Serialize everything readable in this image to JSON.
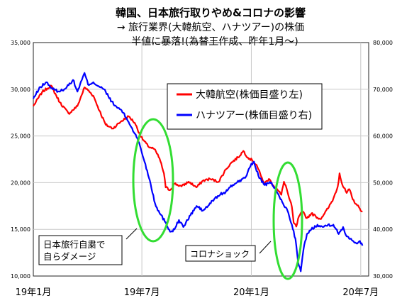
{
  "titles": {
    "line1": "韓国、日本旅行取りやめ&コロナの影響",
    "line2": "→  旅行業界(大韓航空、ハナツアー)の株価",
    "line3": "半値に暴落!(為替王作成、昨年1月〜)"
  },
  "annotations": {
    "japan_boycott_line1": "日本旅行自粛で",
    "japan_boycott_line2": "自らダメージ",
    "corona_shock": "コロナショック"
  },
  "colors": {
    "korean_air": "#ff0000",
    "hanatour": "#0000ff",
    "highlight": "#33dd33"
  },
  "chart_data": {
    "type": "line",
    "title": "韓国、日本旅行取りやめ&コロナの影響",
    "x_tick_labels": [
      "19年1月",
      "19年7月",
      "20年1月",
      "20年7月"
    ],
    "x_unit": "trading-day index (0 = 2019-01-02)",
    "x_range": [
      0,
      380
    ],
    "x_tick_positions": [
      0,
      123,
      247,
      371
    ],
    "y_left": {
      "range": [
        10000,
        35000
      ],
      "ticks": [
        "10,000",
        "15,000",
        "20,000",
        "25,000",
        "30,000",
        "35,000"
      ]
    },
    "y_right": {
      "range": [
        30000,
        80000
      ],
      "ticks": [
        "30,000",
        "40,000",
        "50,000",
        "60,000",
        "70,000",
        "80,000"
      ]
    },
    "grid": true,
    "legend_position": "top-right",
    "series": [
      {
        "name": "大韓航空(株価目盛り左)",
        "axis": "left",
        "points": [
          [
            0,
            28200
          ],
          [
            10,
            29700
          ],
          [
            20,
            30400
          ],
          [
            30,
            28600
          ],
          [
            40,
            27400
          ],
          [
            50,
            28200
          ],
          [
            58,
            30200
          ],
          [
            62,
            29900
          ],
          [
            68,
            29300
          ],
          [
            75,
            27700
          ],
          [
            82,
            26200
          ],
          [
            90,
            25800
          ],
          [
            100,
            26600
          ],
          [
            108,
            27100
          ],
          [
            115,
            26400
          ],
          [
            122,
            24900
          ],
          [
            130,
            23900
          ],
          [
            137,
            23600
          ],
          [
            143,
            22600
          ],
          [
            148,
            21000
          ],
          [
            150,
            19500
          ],
          [
            155,
            19200
          ],
          [
            160,
            19900
          ],
          [
            168,
            19600
          ],
          [
            176,
            20100
          ],
          [
            185,
            19500
          ],
          [
            192,
            20200
          ],
          [
            200,
            20400
          ],
          [
            210,
            20100
          ],
          [
            218,
            21400
          ],
          [
            225,
            22200
          ],
          [
            232,
            22700
          ],
          [
            238,
            23400
          ],
          [
            243,
            22700
          ],
          [
            248,
            22400
          ],
          [
            253,
            21900
          ],
          [
            258,
            20700
          ],
          [
            262,
            19900
          ],
          [
            267,
            20400
          ],
          [
            272,
            19700
          ],
          [
            277,
            19200
          ],
          [
            281,
            18700
          ],
          [
            284,
            20100
          ],
          [
            286,
            19700
          ],
          [
            290,
            18300
          ],
          [
            293,
            17400
          ],
          [
            295,
            15700
          ],
          [
            298,
            15300
          ],
          [
            301,
            16400
          ],
          [
            305,
            16900
          ],
          [
            310,
            16200
          ],
          [
            315,
            16700
          ],
          [
            320,
            16400
          ],
          [
            325,
            16100
          ],
          [
            330,
            16700
          ],
          [
            335,
            17400
          ],
          [
            340,
            18300
          ],
          [
            345,
            19600
          ],
          [
            347,
            21000
          ],
          [
            350,
            19800
          ],
          [
            355,
            18900
          ],
          [
            358,
            19300
          ],
          [
            362,
            18200
          ],
          [
            366,
            17700
          ],
          [
            370,
            17200
          ],
          [
            373,
            16900
          ]
        ]
      },
      {
        "name": "ハナツアー(株価目盛り右)",
        "axis": "right",
        "points": [
          [
            0,
            68000
          ],
          [
            8,
            70500
          ],
          [
            15,
            71500
          ],
          [
            22,
            70000
          ],
          [
            30,
            69500
          ],
          [
            38,
            70500
          ],
          [
            45,
            72000
          ],
          [
            50,
            69500
          ],
          [
            55,
            72000
          ],
          [
            58,
            73500
          ],
          [
            62,
            71000
          ],
          [
            68,
            71500
          ],
          [
            75,
            70500
          ],
          [
            80,
            70000
          ],
          [
            85,
            68500
          ],
          [
            92,
            66500
          ],
          [
            100,
            65500
          ],
          [
            108,
            63000
          ],
          [
            115,
            60500
          ],
          [
            120,
            58500
          ],
          [
            126,
            54500
          ],
          [
            132,
            50500
          ],
          [
            138,
            45500
          ],
          [
            143,
            43500
          ],
          [
            150,
            41500
          ],
          [
            155,
            39500
          ],
          [
            160,
            40000
          ],
          [
            165,
            42000
          ],
          [
            170,
            40500
          ],
          [
            178,
            43000
          ],
          [
            185,
            45000
          ],
          [
            192,
            44000
          ],
          [
            198,
            45000
          ],
          [
            205,
            46500
          ],
          [
            212,
            47500
          ],
          [
            218,
            48000
          ],
          [
            226,
            49500
          ],
          [
            234,
            50500
          ],
          [
            240,
            51000
          ],
          [
            246,
            53500
          ],
          [
            250,
            54500
          ],
          [
            255,
            51500
          ],
          [
            262,
            49500
          ],
          [
            270,
            50000
          ],
          [
            276,
            48000
          ],
          [
            283,
            45500
          ],
          [
            288,
            44000
          ],
          [
            293,
            41000
          ],
          [
            297,
            38000
          ],
          [
            300,
            33000
          ],
          [
            303,
            31000
          ],
          [
            306,
            35500
          ],
          [
            310,
            39000
          ],
          [
            315,
            40000
          ],
          [
            322,
            41000
          ],
          [
            328,
            40500
          ],
          [
            334,
            41000
          ],
          [
            340,
            41000
          ],
          [
            346,
            39000
          ],
          [
            351,
            40500
          ],
          [
            355,
            38500
          ],
          [
            360,
            38000
          ],
          [
            366,
            37000
          ],
          [
            370,
            37500
          ],
          [
            373,
            36500
          ]
        ]
      }
    ]
  }
}
